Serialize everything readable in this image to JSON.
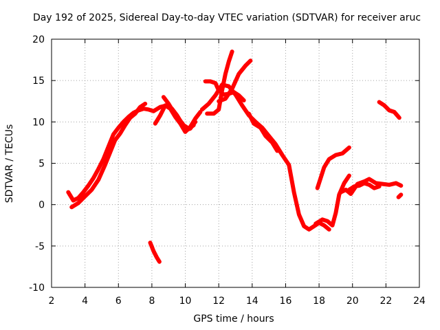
{
  "chart_data": {
    "type": "line",
    "title": "Day 192 of 2025, Sidereal Day-to-day VTEC variation (SDTVAR) for receiver aruc",
    "xlabel": "GPS time / hours",
    "ylabel": "SDTVAR / TECUs",
    "xlim": [
      2,
      24
    ],
    "ylim": [
      -10,
      20
    ],
    "xticks": [
      2,
      4,
      6,
      8,
      10,
      12,
      14,
      16,
      18,
      20,
      22,
      24
    ],
    "yticks": [
      -10,
      -5,
      0,
      5,
      10,
      15,
      20
    ],
    "grid": true,
    "line_color": "#ff0000",
    "series": [
      {
        "name": "s1",
        "x": [
          3.0,
          3.3,
          3.6,
          3.9,
          4.2,
          4.5,
          4.8,
          5.1,
          5.4,
          5.7,
          6.0,
          6.3,
          6.6,
          6.9,
          7.2,
          7.5,
          7.8,
          8.1,
          8.5,
          8.9,
          9.2,
          9.5,
          9.8,
          10.0,
          10.3,
          10.6
        ],
        "y": [
          1.5,
          0.5,
          0.8,
          1.5,
          2.3,
          3.2,
          4.3,
          5.5,
          7.0,
          8.5,
          9.3,
          10.0,
          10.6,
          11.1,
          11.4,
          11.6,
          11.5,
          11.3,
          11.8,
          12.0,
          11.6,
          10.8,
          9.8,
          9.0,
          9.2,
          10.0
        ]
      },
      {
        "name": "s2",
        "x": [
          3.2,
          3.6,
          4.0,
          4.4,
          4.8,
          5.2,
          5.5,
          5.8,
          6.1,
          6.4,
          6.7,
          7.0,
          7.3,
          7.6
        ],
        "y": [
          -0.3,
          0.2,
          1.0,
          1.8,
          3.0,
          4.8,
          6.3,
          7.8,
          8.6,
          9.6,
          10.5,
          11.0,
          11.8,
          12.2
        ]
      },
      {
        "name": "s3",
        "x": [
          8.2,
          8.5,
          8.8,
          9.1,
          9.4,
          9.7,
          10.0,
          10.3,
          10.6,
          10.9
        ],
        "y": [
          9.8,
          10.8,
          12.0,
          11.6,
          10.6,
          9.8,
          8.8,
          9.4,
          10.4,
          11.2
        ]
      },
      {
        "name": "s4",
        "x": [
          8.7,
          9.0,
          9.3,
          9.6,
          9.9,
          10.2,
          10.5
        ],
        "y": [
          13.0,
          12.2,
          11.2,
          10.4,
          9.6,
          9.2,
          9.6
        ]
      },
      {
        "name": "s5",
        "x": [
          11.0,
          11.4,
          11.8,
          12.2,
          12.6,
          13.0,
          13.4,
          13.8,
          14.2,
          14.6,
          15.0,
          15.4,
          15.8,
          16.2,
          16.5,
          16.8,
          17.1,
          17.4,
          17.7,
          18.0,
          18.3,
          18.6
        ],
        "y": [
          11.5,
          12.2,
          13.2,
          14.5,
          14.3,
          13.3,
          12.0,
          10.8,
          10.0,
          9.3,
          8.3,
          7.3,
          6.0,
          4.8,
          1.5,
          -1.2,
          -2.6,
          -3.0,
          -2.6,
          -2.2,
          -2.5,
          -3.0
        ]
      },
      {
        "name": "s6",
        "x": [
          11.2,
          11.5,
          11.8,
          12.0,
          12.3,
          12.6,
          12.9,
          13.2,
          13.5
        ],
        "y": [
          14.9,
          14.9,
          14.7,
          13.8,
          13.3,
          13.4,
          13.6,
          13.2,
          12.6
        ]
      },
      {
        "name": "s7",
        "x": [
          11.3,
          11.7,
          12.0,
          12.2,
          12.4,
          12.6,
          12.8
        ],
        "y": [
          11.0,
          11.0,
          11.5,
          13.8,
          15.8,
          17.3,
          18.5
        ]
      },
      {
        "name": "s8",
        "x": [
          12.0,
          12.4,
          12.8,
          13.2,
          13.6,
          13.9
        ],
        "y": [
          12.5,
          12.8,
          14.0,
          15.8,
          16.8,
          17.4
        ]
      },
      {
        "name": "s9",
        "x": [
          13.8,
          14.1,
          14.5,
          14.8,
          15.2,
          15.5
        ],
        "y": [
          11.0,
          9.8,
          9.3,
          8.3,
          7.5,
          6.5
        ]
      },
      {
        "name": "s10",
        "x": [
          17.9,
          18.3,
          18.6,
          19.0,
          19.4,
          19.8
        ],
        "y": [
          2.0,
          4.5,
          5.5,
          6.0,
          6.2,
          6.9
        ]
      },
      {
        "name": "s11",
        "x": [
          17.8,
          18.2,
          18.5,
          18.8,
          19.0,
          19.2,
          19.5,
          19.8
        ],
        "y": [
          -2.3,
          -1.8,
          -2.0,
          -2.5,
          -1.0,
          1.2,
          2.6,
          3.5
        ]
      },
      {
        "name": "s12",
        "x": [
          19.3,
          19.6,
          19.9,
          20.3,
          20.7,
          21.0,
          21.4,
          21.8,
          22.2,
          22.6,
          22.9
        ],
        "y": [
          1.5,
          1.8,
          1.3,
          2.5,
          2.8,
          3.1,
          2.6,
          2.5,
          2.4,
          2.6,
          2.3
        ]
      },
      {
        "name": "s13",
        "x": [
          19.8,
          20.1,
          20.4,
          20.7,
          21.0,
          21.3,
          21.6
        ],
        "y": [
          1.8,
          2.2,
          2.3,
          2.6,
          2.4,
          2.0,
          2.2
        ]
      },
      {
        "name": "s14",
        "x": [
          21.6,
          21.9,
          22.2,
          22.5,
          22.8
        ],
        "y": [
          12.4,
          12.0,
          11.4,
          11.2,
          10.5
        ]
      },
      {
        "name": "s15",
        "x": [
          22.75,
          22.9
        ],
        "y": [
          0.9,
          1.2
        ]
      },
      {
        "name": "s16",
        "x": [
          7.9,
          8.1,
          8.3,
          8.45
        ],
        "y": [
          -4.6,
          -5.6,
          -6.4,
          -6.9
        ]
      }
    ]
  }
}
